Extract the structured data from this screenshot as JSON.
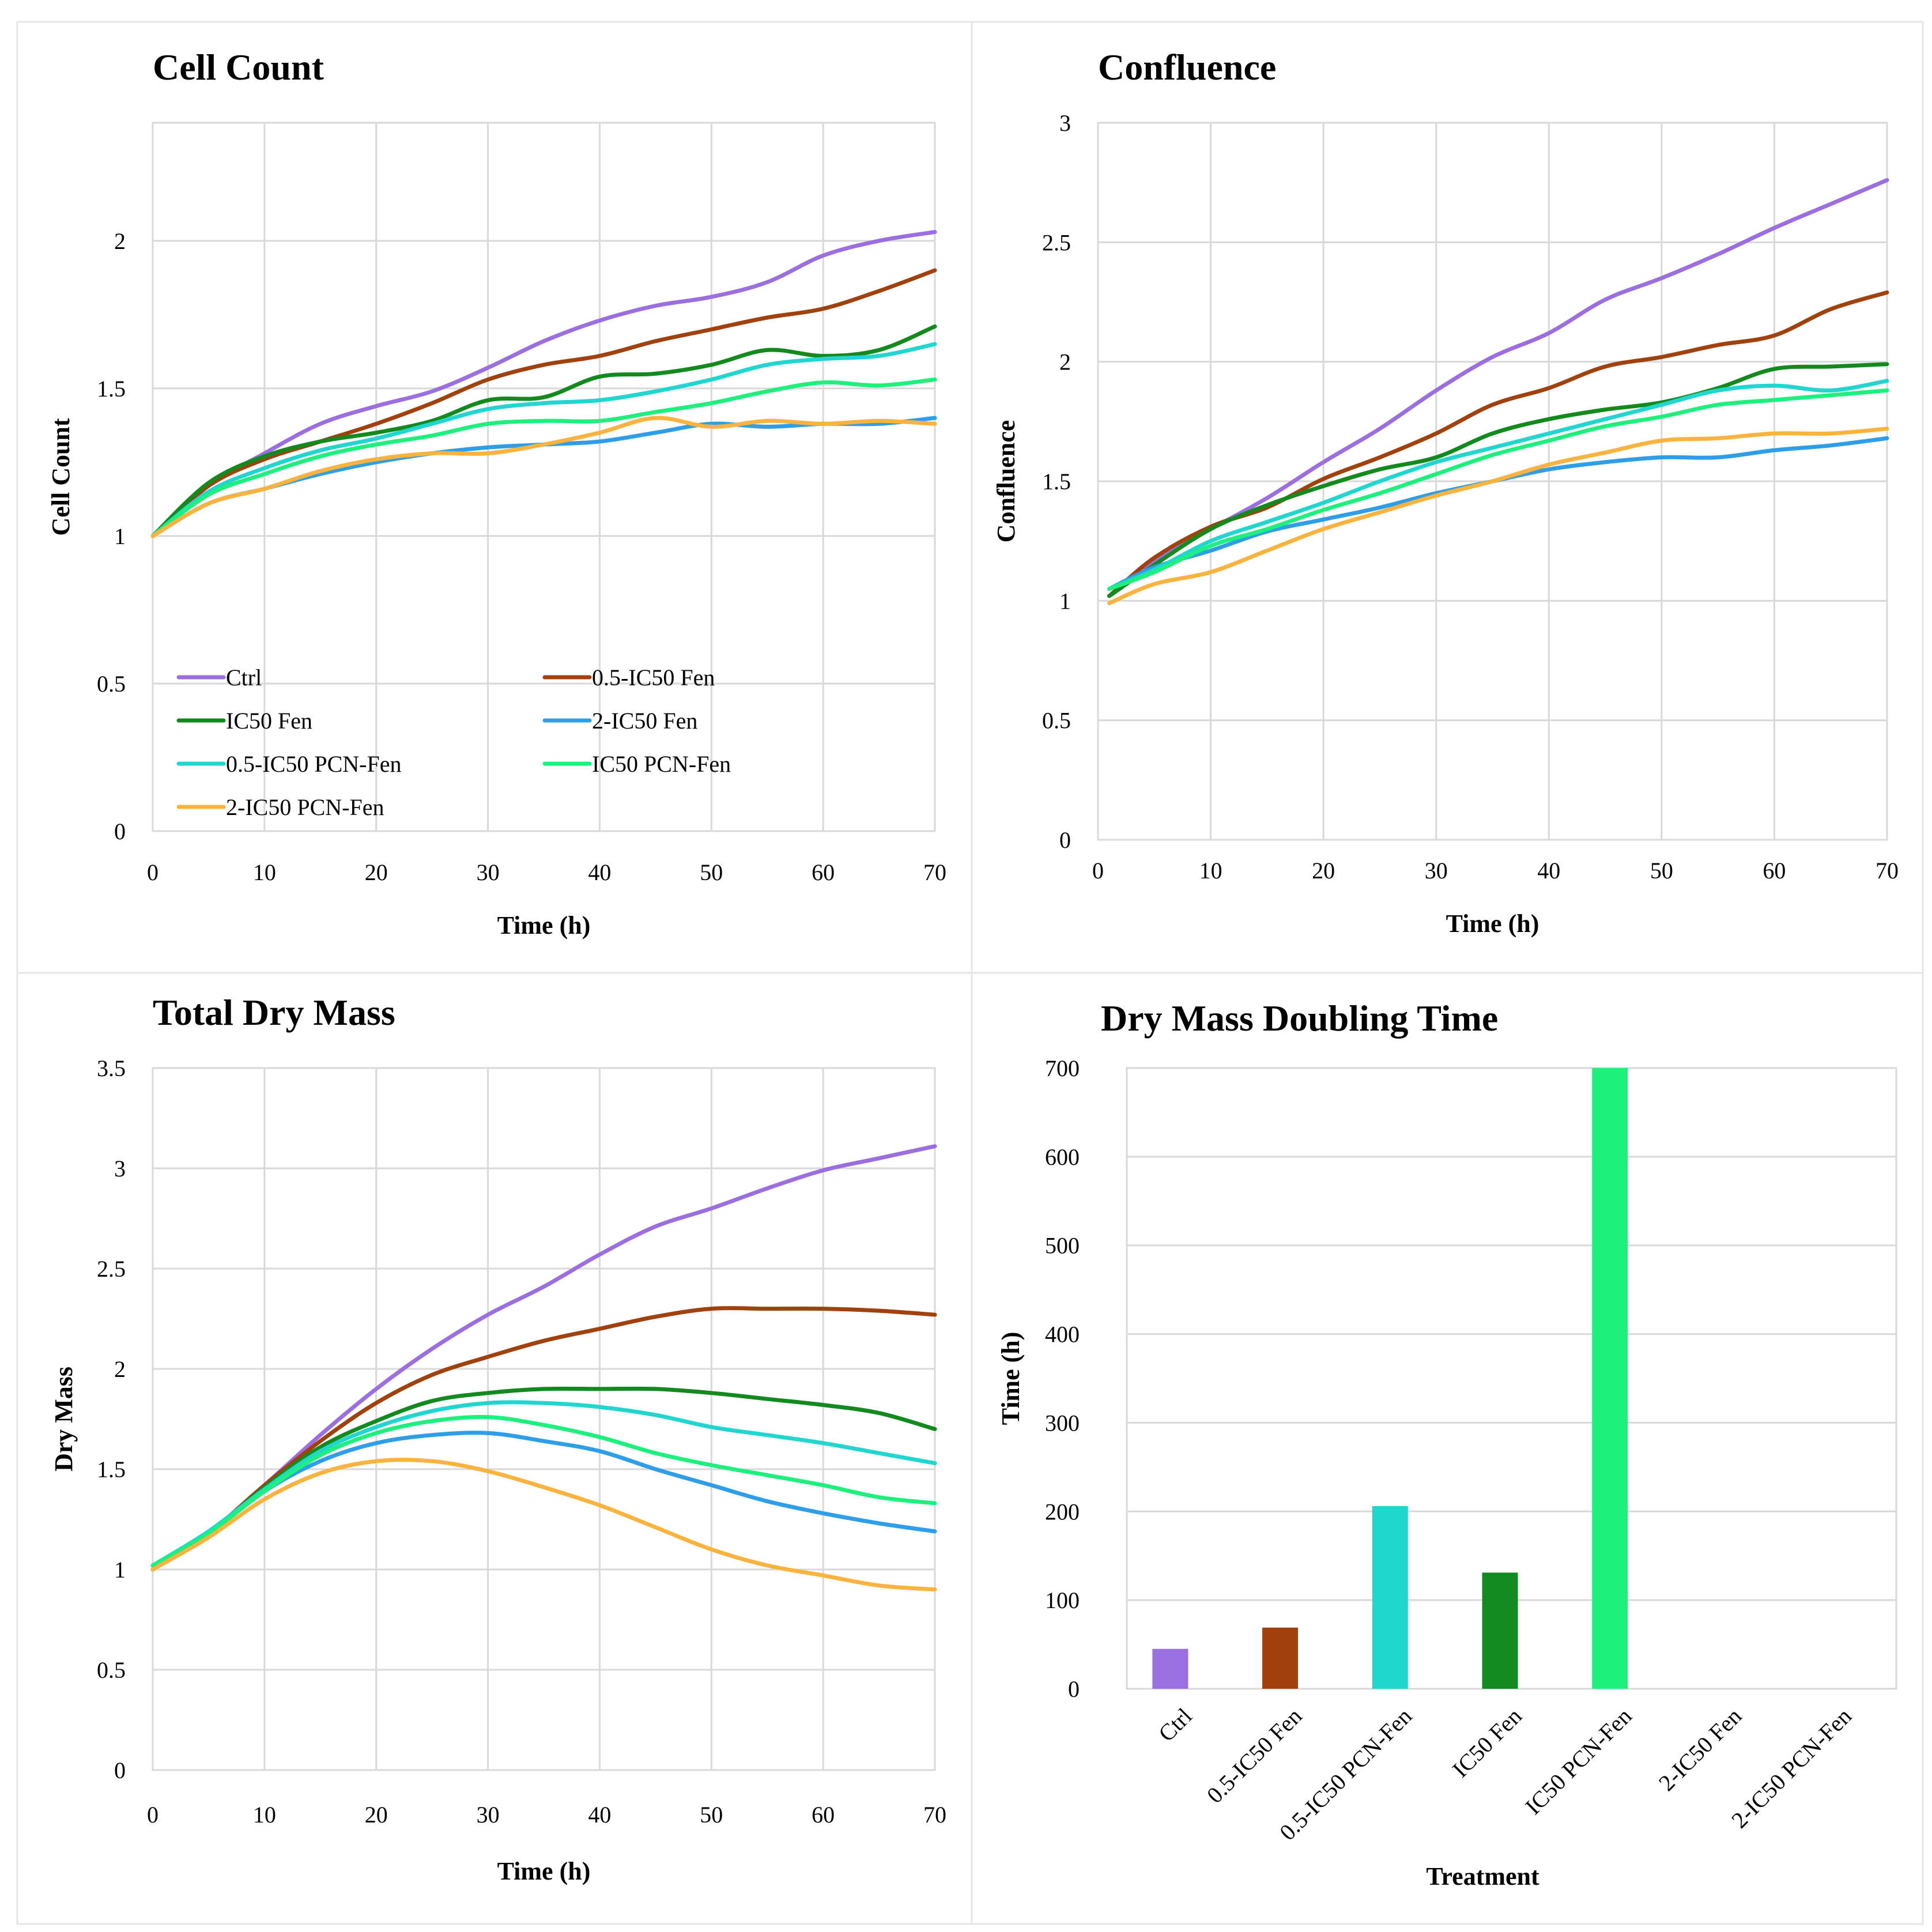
{
  "colors": {
    "ctrl": "#9b6fe0",
    "half_ic50_fen": "#a0410e",
    "ic50_fen": "#138a1e",
    "two_ic50_fen": "#2f9ee8",
    "half_ic50_pcn_fen": "#21d6cf",
    "ic50_pcn_fen": "#1ef07e",
    "two_ic50_pcn_fen": "#f9b33e"
  },
  "chart_data": [
    {
      "id": "cell-count",
      "type": "line",
      "title": "Cell Count",
      "xlabel": "Time (h)",
      "ylabel": "Cell Count",
      "xlim": [
        0,
        70
      ],
      "ylim": [
        0,
        2.4
      ],
      "xticks": [
        0,
        10,
        20,
        30,
        40,
        50,
        60,
        70
      ],
      "yticks": [
        0,
        0.5,
        1,
        1.5,
        2
      ],
      "ytick_labels": [
        "0",
        "0.5",
        "1",
        "1.5",
        "2"
      ],
      "grid": true,
      "legend": {
        "placement": "bottom-left",
        "entries": [
          "Ctrl",
          "0.5-IC50 Fen",
          "IC50 Fen",
          "2-IC50 Fen",
          "0.5-IC50 PCN-Fen",
          "IC50 PCN-Fen",
          "2-IC50 PCN-Fen"
        ]
      },
      "x": [
        0,
        5,
        10,
        15,
        20,
        25,
        30,
        35,
        40,
        45,
        50,
        55,
        60,
        65,
        70
      ],
      "series": [
        {
          "name": "Ctrl",
          "color_key": "ctrl",
          "values": [
            1.0,
            1.17,
            1.28,
            1.38,
            1.44,
            1.49,
            1.57,
            1.66,
            1.73,
            1.78,
            1.81,
            1.86,
            1.95,
            2.0,
            2.03
          ]
        },
        {
          "name": "0.5-IC50 Fen",
          "color_key": "half_ic50_fen",
          "values": [
            1.0,
            1.17,
            1.26,
            1.32,
            1.38,
            1.45,
            1.53,
            1.58,
            1.61,
            1.66,
            1.7,
            1.74,
            1.77,
            1.83,
            1.9
          ]
        },
        {
          "name": "IC50 Fen",
          "color_key": "ic50_fen",
          "values": [
            1.0,
            1.18,
            1.27,
            1.32,
            1.35,
            1.39,
            1.46,
            1.47,
            1.54,
            1.55,
            1.58,
            1.63,
            1.61,
            1.63,
            1.71
          ]
        },
        {
          "name": "2-IC50 Fen",
          "color_key": "two_ic50_fen",
          "values": [
            1.0,
            1.11,
            1.16,
            1.21,
            1.25,
            1.28,
            1.3,
            1.31,
            1.32,
            1.35,
            1.38,
            1.37,
            1.38,
            1.38,
            1.4
          ]
        },
        {
          "name": "0.5-IC50 PCN-Fen",
          "color_key": "half_ic50_pcn_fen",
          "values": [
            1.0,
            1.15,
            1.23,
            1.29,
            1.33,
            1.38,
            1.43,
            1.45,
            1.46,
            1.49,
            1.53,
            1.58,
            1.6,
            1.61,
            1.65
          ]
        },
        {
          "name": "IC50 PCN-Fen",
          "color_key": "ic50_pcn_fen",
          "values": [
            1.0,
            1.14,
            1.21,
            1.27,
            1.31,
            1.34,
            1.38,
            1.39,
            1.39,
            1.42,
            1.45,
            1.49,
            1.52,
            1.51,
            1.53
          ]
        },
        {
          "name": "2-IC50 PCN-Fen",
          "color_key": "two_ic50_pcn_fen",
          "values": [
            1.0,
            1.11,
            1.16,
            1.22,
            1.26,
            1.28,
            1.28,
            1.31,
            1.35,
            1.4,
            1.37,
            1.39,
            1.38,
            1.39,
            1.38
          ]
        }
      ]
    },
    {
      "id": "confluence",
      "type": "line",
      "title": "Confluence",
      "xlabel": "Time (h)",
      "ylabel": "Confluence",
      "xlim": [
        0,
        70
      ],
      "ylim": [
        0,
        3
      ],
      "xticks": [
        0,
        10,
        20,
        30,
        40,
        50,
        60,
        70
      ],
      "yticks": [
        0,
        0.5,
        1,
        1.5,
        2,
        2.5,
        3
      ],
      "ytick_labels": [
        "0",
        "0.5",
        "1",
        "1.5",
        "2",
        "2.5",
        "3"
      ],
      "grid": true,
      "x": [
        1,
        5,
        10,
        15,
        20,
        25,
        30,
        35,
        40,
        45,
        50,
        55,
        60,
        65,
        70
      ],
      "series": [
        {
          "name": "Ctrl",
          "color_key": "ctrl",
          "values": [
            1.02,
            1.17,
            1.3,
            1.43,
            1.58,
            1.72,
            1.88,
            2.02,
            2.12,
            2.26,
            2.35,
            2.45,
            2.56,
            2.66,
            2.76
          ]
        },
        {
          "name": "0.5-IC50 Fen",
          "color_key": "half_ic50_fen",
          "values": [
            1.02,
            1.18,
            1.31,
            1.39,
            1.51,
            1.6,
            1.7,
            1.82,
            1.89,
            1.98,
            2.02,
            2.07,
            2.11,
            2.22,
            2.29
          ]
        },
        {
          "name": "IC50 Fen",
          "color_key": "ic50_fen",
          "values": [
            1.02,
            1.15,
            1.3,
            1.4,
            1.48,
            1.55,
            1.6,
            1.7,
            1.76,
            1.8,
            1.83,
            1.89,
            1.97,
            1.98,
            1.99
          ]
        },
        {
          "name": "2-IC50 Fen",
          "color_key": "two_ic50_fen",
          "values": [
            1.05,
            1.14,
            1.21,
            1.29,
            1.34,
            1.39,
            1.45,
            1.5,
            1.55,
            1.58,
            1.6,
            1.6,
            1.63,
            1.65,
            1.68
          ]
        },
        {
          "name": "0.5-IC50 PCN-Fen",
          "color_key": "half_ic50_pcn_fen",
          "values": [
            1.05,
            1.13,
            1.25,
            1.33,
            1.41,
            1.5,
            1.58,
            1.64,
            1.7,
            1.76,
            1.82,
            1.88,
            1.9,
            1.88,
            1.92
          ]
        },
        {
          "name": "IC50 PCN-Fen",
          "color_key": "ic50_pcn_fen",
          "values": [
            1.05,
            1.12,
            1.23,
            1.3,
            1.38,
            1.45,
            1.53,
            1.61,
            1.67,
            1.73,
            1.77,
            1.82,
            1.84,
            1.86,
            1.88
          ]
        },
        {
          "name": "2-IC50 PCN-Fen",
          "color_key": "two_ic50_pcn_fen",
          "values": [
            0.99,
            1.07,
            1.12,
            1.21,
            1.3,
            1.37,
            1.44,
            1.5,
            1.57,
            1.62,
            1.67,
            1.68,
            1.7,
            1.7,
            1.72
          ]
        }
      ]
    },
    {
      "id": "total-dry-mass",
      "type": "line",
      "title": "Total Dry Mass",
      "xlabel": "Time (h)",
      "ylabel": "Dry Mass",
      "xlim": [
        0,
        70
      ],
      "ylim": [
        0,
        3.5
      ],
      "xticks": [
        0,
        10,
        20,
        30,
        40,
        50,
        60,
        70
      ],
      "yticks": [
        0,
        0.5,
        1,
        1.5,
        2,
        2.5,
        3,
        3.5
      ],
      "ytick_labels": [
        "0",
        "0.5",
        "1",
        "1.5",
        "2",
        "2.5",
        "3",
        "3.5"
      ],
      "grid": true,
      "x": [
        0,
        5,
        10,
        15,
        20,
        25,
        30,
        35,
        40,
        45,
        50,
        55,
        60,
        65,
        70
      ],
      "series": [
        {
          "name": "Ctrl",
          "color_key": "ctrl",
          "values": [
            1.0,
            1.18,
            1.42,
            1.67,
            1.9,
            2.1,
            2.27,
            2.41,
            2.57,
            2.71,
            2.8,
            2.9,
            2.99,
            3.05,
            3.11
          ]
        },
        {
          "name": "0.5-IC50 Fen",
          "color_key": "half_ic50_fen",
          "values": [
            1.0,
            1.18,
            1.42,
            1.64,
            1.83,
            1.97,
            2.06,
            2.14,
            2.2,
            2.26,
            2.3,
            2.3,
            2.3,
            2.29,
            2.27
          ]
        },
        {
          "name": "IC50 Fen",
          "color_key": "ic50_fen",
          "values": [
            1.0,
            1.18,
            1.41,
            1.61,
            1.74,
            1.84,
            1.88,
            1.9,
            1.9,
            1.9,
            1.88,
            1.85,
            1.82,
            1.78,
            1.7
          ]
        },
        {
          "name": "2-IC50 Fen",
          "color_key": "two_ic50_fen",
          "values": [
            1.0,
            1.18,
            1.39,
            1.54,
            1.63,
            1.67,
            1.68,
            1.64,
            1.59,
            1.5,
            1.42,
            1.34,
            1.28,
            1.23,
            1.19
          ]
        },
        {
          "name": "0.5-IC50 PCN-Fen",
          "color_key": "half_ic50_pcn_fen",
          "values": [
            1.02,
            1.19,
            1.4,
            1.59,
            1.71,
            1.79,
            1.83,
            1.83,
            1.81,
            1.77,
            1.71,
            1.67,
            1.63,
            1.58,
            1.53
          ]
        },
        {
          "name": "IC50 PCN-Fen",
          "color_key": "ic50_pcn_fen",
          "values": [
            1.02,
            1.18,
            1.39,
            1.57,
            1.68,
            1.74,
            1.76,
            1.72,
            1.66,
            1.58,
            1.52,
            1.47,
            1.42,
            1.36,
            1.33
          ]
        },
        {
          "name": "2-IC50 PCN-Fen",
          "color_key": "two_ic50_pcn_fen",
          "values": [
            1.0,
            1.16,
            1.35,
            1.48,
            1.54,
            1.54,
            1.49,
            1.41,
            1.32,
            1.21,
            1.1,
            1.02,
            0.97,
            0.92,
            0.9
          ]
        }
      ]
    },
    {
      "id": "dry-mass-doubling-time",
      "type": "bar",
      "title": "Dry Mass Doubling Time",
      "xlabel": "Treatment",
      "ylabel": "Time (h)",
      "ylim": [
        0,
        700
      ],
      "yticks": [
        0,
        100,
        200,
        300,
        400,
        500,
        600,
        700
      ],
      "ytick_labels": [
        "0",
        "100",
        "200",
        "300",
        "400",
        "500",
        "600",
        "700"
      ],
      "grid": true,
      "categories": [
        "Ctrl",
        "0.5-IC50 Fen",
        "0.5-IC50 PCN-Fen",
        "IC50 Fen",
        "IC50 PCN-Fen",
        "2-IC50 Fen",
        "2-IC50 PCN-Fen"
      ],
      "values": [
        45,
        69,
        206,
        131,
        700,
        null,
        null
      ],
      "color_keys": [
        "ctrl",
        "half_ic50_fen",
        "half_ic50_pcn_fen",
        "ic50_fen",
        "ic50_pcn_fen",
        "two_ic50_fen",
        "two_ic50_pcn_fen"
      ]
    }
  ]
}
